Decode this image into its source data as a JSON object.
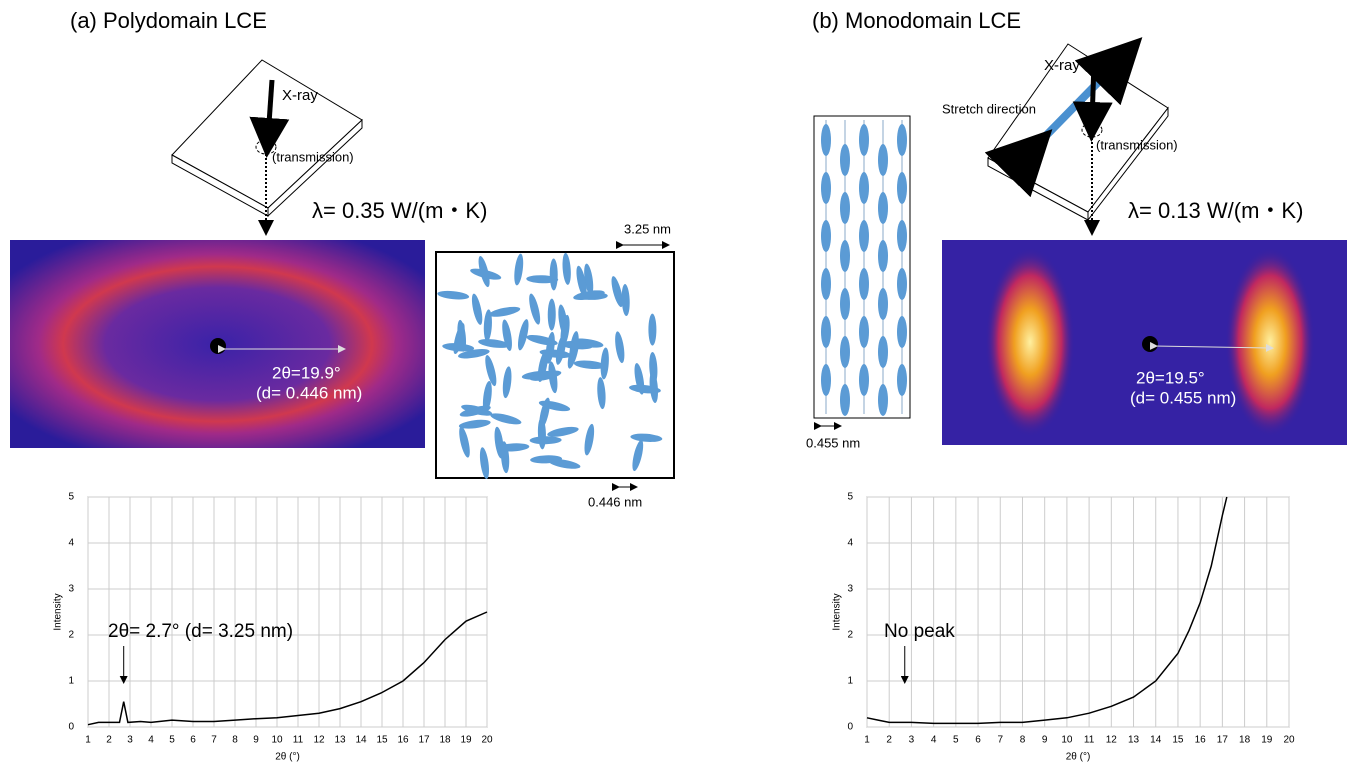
{
  "chart_data": [
    {
      "type": "line",
      "xlabel": "2θ (°)",
      "ylabel": "Intensity",
      "xlim": [
        1,
        20
      ],
      "xticks": [
        1,
        2,
        3,
        4,
        5,
        6,
        7,
        8,
        9,
        10,
        11,
        12,
        13,
        14,
        15,
        16,
        17,
        18,
        19,
        20
      ],
      "ylim": [
        0,
        5
      ],
      "yticks": [
        0,
        1,
        2,
        3,
        4,
        5
      ],
      "grid": true,
      "annotation": "2θ= 2.7° (d= 3.25 nm)",
      "series": [
        {
          "color": "#000000",
          "x": [
            1,
            1.5,
            2,
            2.5,
            2.7,
            2.9,
            3.5,
            4,
            5,
            6,
            7,
            8,
            9,
            10,
            11,
            12,
            13,
            14,
            15,
            16,
            17,
            18,
            19,
            20
          ],
          "values": [
            0.05,
            0.1,
            0.1,
            0.1,
            0.55,
            0.1,
            0.12,
            0.1,
            0.15,
            0.12,
            0.12,
            0.15,
            0.18,
            0.2,
            0.25,
            0.3,
            0.4,
            0.55,
            0.75,
            1.0,
            1.4,
            1.9,
            2.3,
            2.5
          ]
        }
      ]
    },
    {
      "type": "line",
      "xlabel": "2θ (°)",
      "ylabel": "Intensity",
      "xlim": [
        1,
        20
      ],
      "xticks": [
        1,
        2,
        3,
        4,
        5,
        6,
        7,
        8,
        9,
        10,
        11,
        12,
        13,
        14,
        15,
        16,
        17,
        18,
        19,
        20
      ],
      "ylim": [
        0,
        5
      ],
      "yticks": [
        0,
        1,
        2,
        3,
        4,
        5
      ],
      "grid": true,
      "annotation": "No peak",
      "series": [
        {
          "color": "#000000",
          "x": [
            1,
            1.5,
            2,
            3,
            4,
            5,
            6,
            7,
            8,
            9,
            10,
            11,
            12,
            13,
            14,
            15,
            15.5,
            16,
            16.5,
            17,
            17.2
          ],
          "values": [
            0.2,
            0.15,
            0.1,
            0.1,
            0.08,
            0.08,
            0.08,
            0.1,
            0.1,
            0.15,
            0.2,
            0.3,
            0.45,
            0.65,
            1.0,
            1.6,
            2.1,
            2.7,
            3.5,
            4.6,
            5
          ]
        }
      ]
    }
  ],
  "panels": [
    {
      "title": "(a) Polydomain LCE",
      "xray": "X-ray",
      "mode": "(transmission)",
      "lambda": "λ= 0.35 W/(m・K)",
      "angle": "2θ=19.9°",
      "spacing": "(d= 0.446 nm)",
      "scale_top": "3.25 nm",
      "scale_bottom": "0.446 nm"
    },
    {
      "title": "(b) Monodomain LCE",
      "xray": "X-ray",
      "mode": "(transmission)",
      "lambda": "λ= 0.13 W/(m・K)",
      "angle": "2θ=19.5°",
      "spacing": "(d= 0.455 nm)",
      "stretch": "Stretch direction",
      "scale_bottom": "0.455 nm"
    }
  ]
}
